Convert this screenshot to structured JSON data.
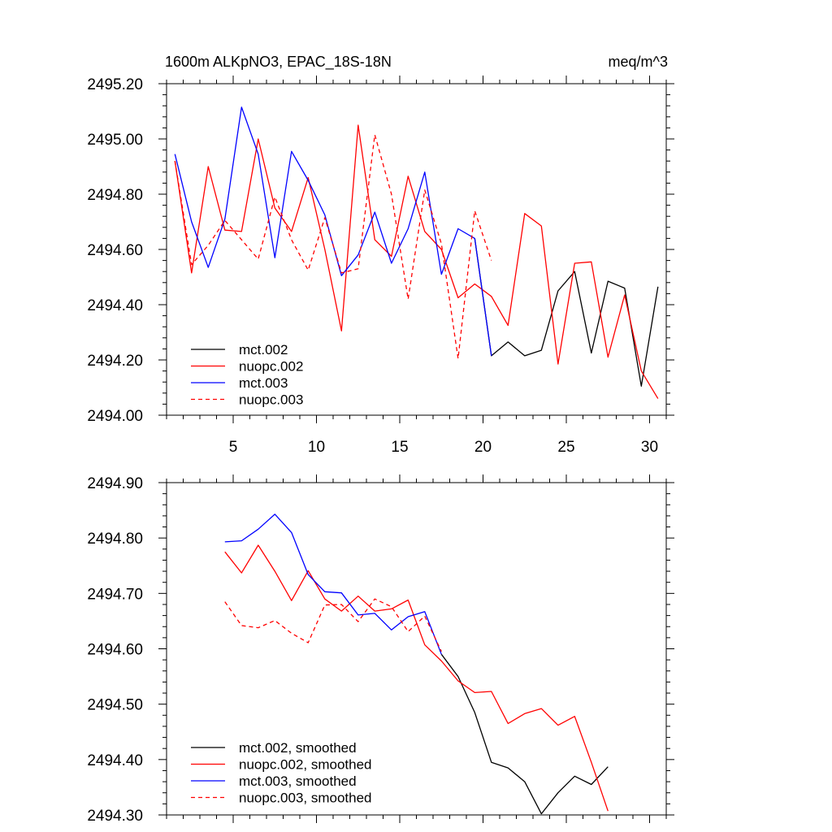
{
  "chart_data": [
    {
      "type": "line",
      "title": "1600m ALKpNO3, EPAC_18S-18N",
      "units": "meq/m^3",
      "xlim": [
        1,
        31
      ],
      "ylim": [
        2494.0,
        2495.2
      ],
      "xticks": [
        5,
        10,
        15,
        20,
        25,
        30
      ],
      "xtick_labels": [
        "5",
        "10",
        "15",
        "20",
        "25",
        "30"
      ],
      "yticks": [
        2494.0,
        2494.2,
        2494.4,
        2494.6,
        2494.8,
        2495.0,
        2495.2
      ],
      "ytick_labels": [
        "2494.00",
        "2494.20",
        "2494.40",
        "2494.60",
        "2494.80",
        "2495.00",
        "2495.20"
      ],
      "grid": false,
      "legend_position": "bottom-left",
      "series": [
        {
          "name": "mct.002",
          "color": "#000000",
          "dash": "solid",
          "x": [
            19.5,
            20.5,
            21.5,
            22.5,
            23.5,
            24.5,
            25.5,
            26.5,
            27.5,
            28.5,
            29.5,
            30.5
          ],
          "y": [
            2494.64,
            2494.215,
            2494.265,
            2494.215,
            2494.235,
            2494.45,
            2494.52,
            2494.225,
            2494.485,
            2494.46,
            2494.105,
            2494.465
          ]
        },
        {
          "name": "nuopc.002",
          "color": "#ff0000",
          "dash": "solid",
          "x": [
            1.5,
            2.5,
            3.5,
            4.5,
            5.5,
            6.5,
            7.5,
            8.5,
            9.5,
            10.5,
            11.5,
            12.5,
            13.5,
            14.5,
            15.5,
            16.5,
            17.5,
            18.5,
            19.5,
            20.5,
            21.5,
            22.5,
            23.5,
            24.5,
            25.5,
            26.5,
            27.5,
            28.5,
            29.5,
            30.5
          ],
          "y": [
            2494.92,
            2494.515,
            2494.9,
            2494.67,
            2494.665,
            2495.0,
            2494.75,
            2494.665,
            2494.86,
            2494.6,
            2494.305,
            2495.05,
            2494.635,
            2494.575,
            2494.865,
            2494.665,
            2494.6,
            2494.425,
            2494.475,
            2494.43,
            2494.325,
            2494.73,
            2494.685,
            2494.185,
            2494.55,
            2494.555,
            2494.21,
            2494.435,
            2494.16,
            2494.06
          ]
        },
        {
          "name": "mct.003",
          "color": "#0000ff",
          "dash": "solid",
          "x": [
            1.5,
            2.5,
            3.5,
            4.5,
            5.5,
            6.5,
            7.5,
            8.5,
            9.5,
            10.5,
            11.5,
            12.5,
            13.5,
            14.5,
            15.5,
            16.5,
            17.5,
            18.5,
            19.5,
            20.5
          ],
          "y": [
            2494.945,
            2494.7,
            2494.535,
            2494.71,
            2495.115,
            2494.945,
            2494.57,
            2494.955,
            2494.85,
            2494.725,
            2494.505,
            2494.58,
            2494.735,
            2494.55,
            2494.675,
            2494.88,
            2494.51,
            2494.675,
            2494.64,
            2494.215
          ]
        },
        {
          "name": "nuopc.003",
          "color": "#ff0000",
          "dash": "dashed",
          "x": [
            1.5,
            2.5,
            3.5,
            4.5,
            5.5,
            6.5,
            7.5,
            8.5,
            9.5,
            10.5,
            11.5,
            12.5,
            13.5,
            14.5,
            15.5,
            16.5,
            17.5,
            18.5,
            19.5,
            20.5
          ],
          "y": [
            2494.92,
            2494.545,
            2494.615,
            2494.705,
            2494.635,
            2494.565,
            2494.79,
            2494.635,
            2494.525,
            2494.715,
            2494.515,
            2494.53,
            2495.015,
            2494.8,
            2494.42,
            2494.815,
            2494.62,
            2494.205,
            2494.74,
            2494.56
          ]
        }
      ]
    },
    {
      "type": "line",
      "xlim": [
        1,
        31
      ],
      "ylim": [
        2494.3,
        2494.9
      ],
      "xticks": [
        5,
        10,
        15,
        20,
        25,
        30
      ],
      "yticks": [
        2494.3,
        2494.4,
        2494.5,
        2494.6,
        2494.7,
        2494.8,
        2494.9
      ],
      "ytick_labels": [
        "2494.30",
        "2494.40",
        "2494.50",
        "2494.60",
        "2494.70",
        "2494.80",
        "2494.90"
      ],
      "grid": false,
      "legend_position": "bottom-left",
      "series": [
        {
          "name": "mct.002, smoothed",
          "color": "#000000",
          "dash": "solid",
          "x": [
            17.5,
            18.5,
            19.5,
            20.5,
            21.5,
            22.5,
            23.5,
            24.5,
            25.5,
            26.5,
            27.5
          ],
          "y": [
            2494.59,
            2494.55,
            2494.485,
            2494.395,
            2494.385,
            2494.36,
            2494.302,
            2494.34,
            2494.37,
            2494.355,
            2494.387
          ]
        },
        {
          "name": "nuopc.002, smoothed",
          "color": "#ff0000",
          "dash": "solid",
          "x": [
            4.5,
            5.5,
            6.5,
            7.5,
            8.5,
            9.5,
            10.5,
            11.5,
            12.5,
            13.5,
            14.5,
            15.5,
            16.5,
            17.5,
            18.5,
            19.5,
            20.5,
            21.5,
            22.5,
            23.5,
            24.5,
            25.5,
            26.5,
            27.5
          ],
          "y": [
            2494.775,
            2494.737,
            2494.787,
            2494.74,
            2494.687,
            2494.741,
            2494.69,
            2494.668,
            2494.695,
            2494.668,
            2494.672,
            2494.688,
            2494.607,
            2494.578,
            2494.542,
            2494.521,
            2494.523,
            2494.465,
            2494.483,
            2494.492,
            2494.462,
            2494.478,
            2494.395,
            2494.307
          ]
        },
        {
          "name": "mct.003, smoothed",
          "color": "#0000ff",
          "dash": "solid",
          "x": [
            4.5,
            5.5,
            6.5,
            7.5,
            8.5,
            9.5,
            10.5,
            11.5,
            12.5,
            13.5,
            14.5,
            15.5,
            16.5,
            17.5
          ],
          "y": [
            2494.793,
            2494.795,
            2494.816,
            2494.843,
            2494.81,
            2494.734,
            2494.703,
            2494.701,
            2494.661,
            2494.664,
            2494.634,
            2494.658,
            2494.667,
            2494.59
          ]
        },
        {
          "name": "nuopc.003, smoothed",
          "color": "#ff0000",
          "dash": "dashed",
          "x": [
            4.5,
            5.5,
            6.5,
            7.5,
            8.5,
            9.5,
            10.5,
            11.5,
            12.5,
            13.5,
            14.5,
            15.5,
            16.5,
            17.5
          ],
          "y": [
            2494.685,
            2494.642,
            2494.638,
            2494.651,
            2494.628,
            2494.611,
            2494.679,
            2494.68,
            2494.649,
            2494.69,
            2494.676,
            2494.631,
            2494.659,
            2494.595
          ]
        }
      ]
    }
  ]
}
